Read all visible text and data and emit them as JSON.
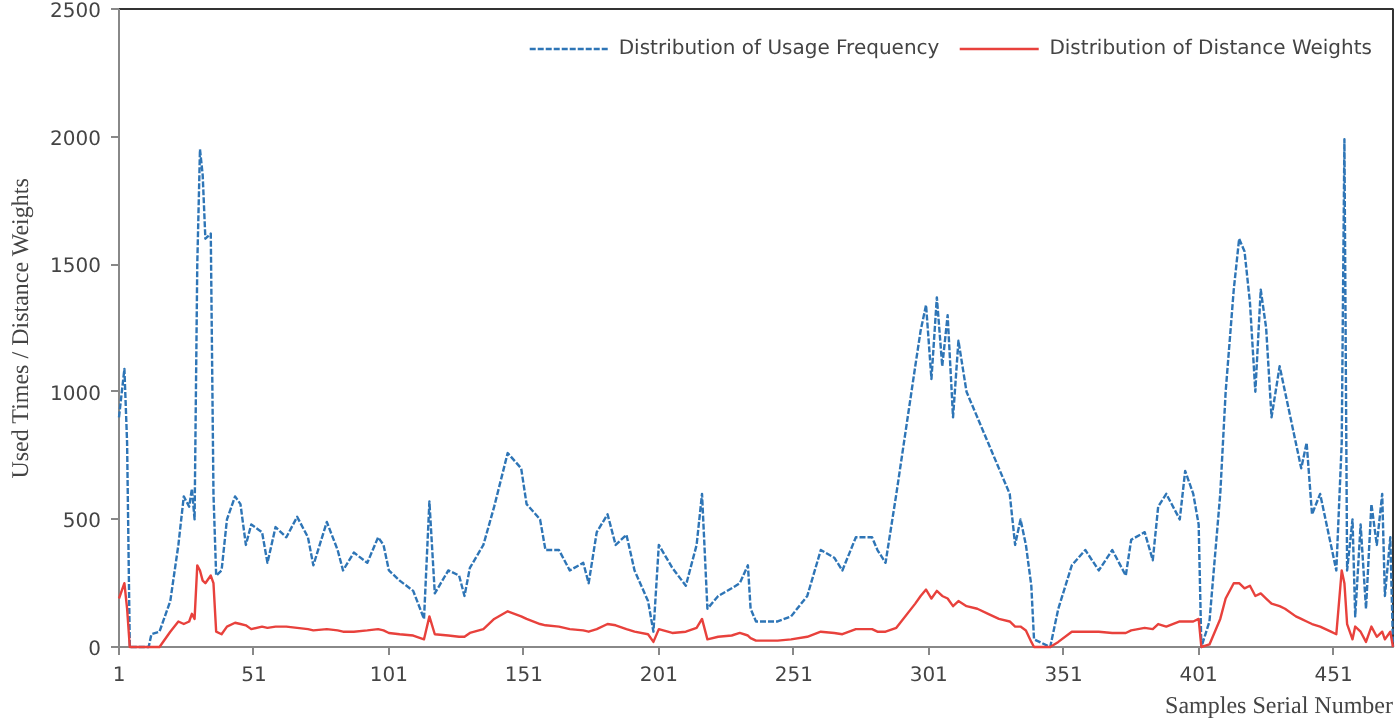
{
  "chart_data": {
    "type": "line",
    "xlabel": "Samples Serial Number",
    "ylabel": "Used Times / Distance Weights",
    "xlim": [
      1,
      473
    ],
    "xticks": [
      1,
      51,
      101,
      151,
      201,
      251,
      301,
      351,
      401,
      451
    ],
    "ylim": [
      0,
      2500
    ],
    "yticks": [
      0,
      500,
      1000,
      1500,
      2000,
      2500
    ],
    "grid": false,
    "legend": "top right",
    "x": [
      1,
      3,
      4,
      5,
      12,
      13,
      16,
      20,
      23,
      25,
      27,
      28,
      29,
      30,
      31,
      32,
      33,
      35,
      36,
      37,
      39,
      41,
      44,
      46,
      48,
      50,
      54,
      56,
      59,
      63,
      67,
      71,
      73,
      78,
      82,
      84,
      88,
      93,
      97,
      99,
      101,
      105,
      110,
      114,
      116,
      118,
      123,
      127,
      129,
      131,
      136,
      140,
      145,
      150,
      152,
      157,
      159,
      164,
      168,
      173,
      175,
      178,
      182,
      185,
      189,
      192,
      197,
      199,
      201,
      206,
      211,
      215,
      217,
      219,
      223,
      228,
      231,
      234,
      235,
      237,
      245,
      250,
      256,
      261,
      266,
      269,
      274,
      280,
      282,
      285,
      289,
      296,
      298,
      300,
      302,
      304,
      306,
      308,
      310,
      312,
      315,
      319,
      323,
      327,
      331,
      333,
      335,
      337,
      339,
      340,
      346,
      349,
      354,
      359,
      364,
      369,
      374,
      376,
      381,
      384,
      386,
      389,
      394,
      396,
      399,
      401,
      402,
      405,
      409,
      411,
      414,
      416,
      418,
      420,
      422,
      424,
      426,
      428,
      431,
      433,
      437,
      439,
      441,
      443,
      446,
      450,
      452,
      454,
      455,
      456,
      458,
      459,
      461,
      463,
      465,
      467,
      469,
      470,
      472,
      473
    ],
    "series": [
      {
        "name": "Distribution of Usage Frequency",
        "color": "#2e75b6",
        "line_style": "dashed",
        "values": [
          900,
          1090,
          800,
          0,
          0,
          50,
          60,
          180,
          400,
          590,
          550,
          620,
          500,
          1500,
          1950,
          1850,
          1600,
          1620,
          600,
          280,
          300,
          500,
          590,
          560,
          400,
          480,
          450,
          330,
          470,
          430,
          510,
          430,
          320,
          490,
          380,
          300,
          370,
          330,
          430,
          400,
          300,
          260,
          220,
          110,
          570,
          210,
          300,
          280,
          200,
          310,
          400,
          550,
          760,
          700,
          560,
          500,
          380,
          380,
          300,
          330,
          250,
          450,
          520,
          400,
          440,
          300,
          180,
          60,
          400,
          310,
          240,
          400,
          600,
          150,
          200,
          230,
          250,
          320,
          150,
          100,
          100,
          120,
          200,
          380,
          350,
          300,
          430,
          430,
          380,
          330,
          600,
          1100,
          1240,
          1340,
          1050,
          1370,
          1100,
          1300,
          900,
          1200,
          1000,
          900,
          800,
          700,
          600,
          400,
          500,
          400,
          240,
          30,
          0,
          150,
          320,
          380,
          300,
          380,
          280,
          420,
          450,
          340,
          550,
          600,
          500,
          690,
          600,
          480,
          0,
          100,
          600,
          1000,
          1400,
          1600,
          1550,
          1350,
          1000,
          1400,
          1250,
          900,
          1100,
          1000,
          800,
          700,
          800,
          520,
          600,
          400,
          300,
          800,
          1990,
          300,
          500,
          120,
          480,
          150,
          560,
          400,
          600,
          200,
          430,
          0
        ]
      },
      {
        "name": "Distribution of Distance Weights",
        "color": "#e8413c",
        "line_style": "solid",
        "values": [
          190,
          250,
          150,
          0,
          0,
          0,
          0,
          60,
          100,
          90,
          100,
          130,
          110,
          320,
          300,
          260,
          250,
          280,
          250,
          60,
          50,
          80,
          95,
          90,
          85,
          70,
          80,
          75,
          80,
          80,
          75,
          70,
          65,
          70,
          65,
          60,
          60,
          65,
          70,
          65,
          55,
          50,
          45,
          30,
          120,
          50,
          45,
          40,
          40,
          55,
          70,
          110,
          140,
          120,
          110,
          90,
          85,
          80,
          70,
          65,
          60,
          70,
          90,
          85,
          70,
          60,
          50,
          20,
          70,
          55,
          60,
          75,
          110,
          30,
          40,
          45,
          55,
          45,
          35,
          25,
          25,
          30,
          40,
          60,
          55,
          50,
          70,
          70,
          60,
          60,
          75,
          170,
          200,
          225,
          190,
          220,
          200,
          190,
          160,
          180,
          160,
          150,
          130,
          110,
          100,
          80,
          80,
          65,
          20,
          0,
          0,
          20,
          60,
          60,
          60,
          55,
          55,
          65,
          75,
          70,
          90,
          80,
          100,
          100,
          100,
          110,
          0,
          10,
          110,
          190,
          250,
          250,
          230,
          240,
          200,
          210,
          190,
          170,
          160,
          150,
          120,
          110,
          100,
          90,
          80,
          60,
          50,
          300,
          250,
          90,
          30,
          80,
          60,
          20,
          80,
          40,
          60,
          30,
          60,
          0
        ]
      }
    ]
  }
}
